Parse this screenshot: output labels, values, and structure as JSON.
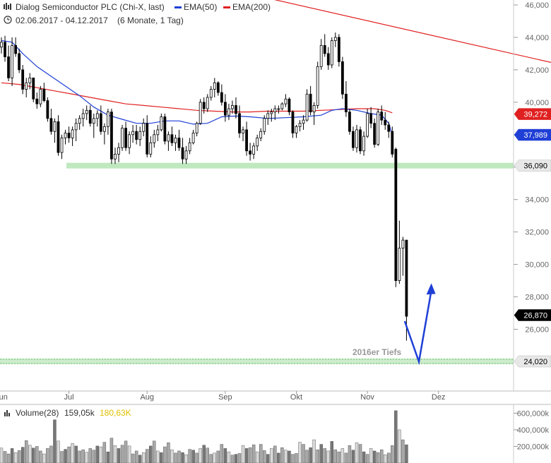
{
  "header": {
    "title": "Dialog Semiconductor PLC (Chi-X, last)",
    "daterange": "02.06.2017 - 04.12.2017",
    "period": "(6 Monate, 1 Tag)",
    "legend": [
      {
        "label": "EMA(50)",
        "color": "#1f3fd6"
      },
      {
        "label": "EMA(200)",
        "color": "#e02020"
      }
    ]
  },
  "volume_header": {
    "label": "Volume(28)",
    "value1": "159,05k",
    "value2": "180,63K",
    "value2_color": "#e0c000"
  },
  "chart_data": [
    {
      "type": "candlestick",
      "title": "Dialog Semiconductor PLC (Chi-X, last)",
      "x_labels": [
        "Jun",
        "Jul",
        "Aug",
        "Sep",
        "Okt",
        "Nov",
        "Dez"
      ],
      "y_ticks": [
        26000,
        28000,
        30000,
        32000,
        34000,
        36000,
        38000,
        40000,
        42000,
        44000,
        46000
      ],
      "y_tick_labels": [
        "26,000",
        "28,000",
        "30,000",
        "32,000",
        "34,000",
        "36,000",
        "38,000",
        "40,000",
        "42,000",
        "44,000",
        "46,000"
      ],
      "ylim": [
        23500,
        46200
      ],
      "price_tags": [
        {
          "label": "39,272",
          "bg": "#e02020",
          "fg": "#ffffff"
        },
        {
          "label": "37,989",
          "bg": "#1f3fd6",
          "fg": "#ffffff"
        },
        {
          "label": "36,090",
          "bg": "#e8e8e8",
          "fg": "#000000"
        },
        {
          "label": "26,870",
          "bg": "#000000",
          "fg": "#ffffff"
        },
        {
          "label": "24,020",
          "bg": "#e8e8e8",
          "fg": "#000000"
        }
      ],
      "support_lines": [
        36090,
        24020
      ],
      "annotation": "2016er Tiefs",
      "ema200": [
        [
          0,
          41.2
        ],
        [
          5,
          41.1
        ],
        [
          10,
          40.9
        ],
        [
          15,
          40.7
        ],
        [
          20,
          40.5
        ],
        [
          25,
          40.3
        ],
        [
          30,
          40.1
        ],
        [
          35,
          39.9
        ],
        [
          40,
          39.8
        ],
        [
          45,
          39.7
        ],
        [
          50,
          39.6
        ],
        [
          55,
          39.5
        ],
        [
          60,
          39.45
        ],
        [
          65,
          39.4
        ],
        [
          70,
          39.4
        ],
        [
          75,
          39.45
        ],
        [
          80,
          39.45
        ],
        [
          85,
          39.45
        ],
        [
          90,
          39.5
        ],
        [
          95,
          39.55
        ],
        [
          100,
          39.6
        ],
        [
          105,
          39.6
        ],
        [
          108,
          39.5
        ],
        [
          110,
          39.35
        ]
      ],
      "ema50": [
        [
          0,
          43.8
        ],
        [
          3,
          43.7
        ],
        [
          6,
          43.0
        ],
        [
          10,
          42.2
        ],
        [
          14,
          41.6
        ],
        [
          18,
          41.0
        ],
        [
          22,
          40.4
        ],
        [
          26,
          39.7
        ],
        [
          30,
          39.2
        ],
        [
          34,
          38.95
        ],
        [
          38,
          38.7
        ],
        [
          42,
          38.7
        ],
        [
          46,
          38.85
        ],
        [
          50,
          38.85
        ],
        [
          54,
          38.65
        ],
        [
          58,
          38.7
        ],
        [
          62,
          39.1
        ],
        [
          66,
          39.15
        ],
        [
          70,
          39.1
        ],
        [
          75,
          39.0
        ],
        [
          80,
          39.05
        ],
        [
          85,
          39.1
        ],
        [
          90,
          39.2
        ],
        [
          93,
          39.5
        ],
        [
          96,
          39.6
        ],
        [
          100,
          39.5
        ],
        [
          104,
          39.3
        ],
        [
          107,
          39.2
        ],
        [
          109,
          38.7
        ],
        [
          110,
          37.99
        ]
      ],
      "ema200_ext": [
        [
          0,
          47.3
        ],
        [
          58,
          42.5
        ]
      ],
      "candles": [
        [
          0,
          43.4,
          44.0,
          43.0,
          43.7
        ],
        [
          1,
          43.7,
          44.1,
          42.5,
          42.8
        ],
        [
          2,
          42.8,
          43.5,
          41.3,
          41.5
        ],
        [
          3,
          41.5,
          44.0,
          41.0,
          43.5
        ],
        [
          4,
          43.5,
          44.0,
          42.8,
          43.0
        ],
        [
          5,
          43.0,
          43.3,
          41.8,
          42.0
        ],
        [
          6,
          42.0,
          42.3,
          40.5,
          40.8
        ],
        [
          7,
          40.8,
          41.5,
          40.3,
          41.2
        ],
        [
          8,
          41.2,
          41.8,
          40.8,
          41.5
        ],
        [
          9,
          41.5,
          41.5,
          40.0,
          40.2
        ],
        [
          10,
          40.2,
          40.6,
          39.6,
          39.9
        ],
        [
          11,
          39.9,
          41.0,
          39.7,
          40.8
        ],
        [
          12,
          40.8,
          41.2,
          40.0,
          40.1
        ],
        [
          13,
          40.1,
          40.3,
          38.8,
          39.0
        ],
        [
          14,
          39.0,
          39.6,
          38.0,
          38.2
        ],
        [
          15,
          38.2,
          39.0,
          37.5,
          38.8
        ],
        [
          16,
          38.8,
          39.2,
          36.7,
          36.9
        ],
        [
          17,
          36.9,
          38.0,
          36.5,
          37.8
        ],
        [
          18,
          37.8,
          38.3,
          37.4,
          38.1
        ],
        [
          19,
          38.1,
          38.5,
          37.5,
          37.8
        ],
        [
          20,
          37.8,
          38.5,
          37.3,
          38.3
        ],
        [
          21,
          38.3,
          39.0,
          37.6,
          38.7
        ],
        [
          22,
          38.7,
          39.2,
          38.3,
          39.0
        ],
        [
          23,
          39.0,
          39.6,
          38.5,
          39.3
        ],
        [
          24,
          39.3,
          39.8,
          38.9,
          39.5
        ],
        [
          25,
          39.5,
          39.8,
          38.5,
          38.7
        ],
        [
          26,
          38.7,
          39.3,
          37.8,
          39.0
        ],
        [
          27,
          39.0,
          39.5,
          38.5,
          39.3
        ],
        [
          28,
          39.3,
          39.8,
          38.0,
          38.2
        ],
        [
          29,
          38.2,
          38.7,
          37.4,
          38.5
        ],
        [
          30,
          38.5,
          39.6,
          38.0,
          39.4
        ],
        [
          31,
          39.4,
          39.6,
          36.2,
          36.5
        ],
        [
          32,
          36.5,
          37.2,
          36.2,
          36.8
        ],
        [
          33,
          36.8,
          37.5,
          36.3,
          37.2
        ],
        [
          34,
          37.2,
          38.6,
          37.0,
          38.4
        ],
        [
          35,
          38.4,
          38.8,
          37.0,
          37.2
        ],
        [
          36,
          37.2,
          38.2,
          36.8,
          38.0
        ],
        [
          37,
          38.0,
          38.6,
          37.5,
          38.2
        ],
        [
          38,
          38.2,
          38.6,
          37.4,
          37.7
        ],
        [
          39,
          37.7,
          38.5,
          37.3,
          38.2
        ],
        [
          40,
          38.2,
          39.0,
          37.9,
          38.7
        ],
        [
          41,
          38.7,
          39.2,
          36.6,
          36.8
        ],
        [
          42,
          36.8,
          37.9,
          36.6,
          37.5
        ],
        [
          43,
          37.5,
          38.3,
          37.2,
          38.0
        ],
        [
          44,
          38.0,
          38.6,
          37.6,
          38.3
        ],
        [
          45,
          38.3,
          39.3,
          38.2,
          39.1
        ],
        [
          46,
          39.1,
          39.3,
          37.4,
          37.6
        ],
        [
          47,
          37.6,
          38.2,
          37.0,
          38.0
        ],
        [
          48,
          38.0,
          38.5,
          37.3,
          37.5
        ],
        [
          49,
          37.5,
          38.0,
          37.0,
          37.8
        ],
        [
          50,
          37.8,
          38.3,
          37.0,
          37.2
        ],
        [
          51,
          37.2,
          37.8,
          36.2,
          36.5
        ],
        [
          52,
          36.5,
          37.3,
          36.2,
          37.0
        ],
        [
          53,
          37.0,
          37.8,
          36.8,
          37.5
        ],
        [
          54,
          37.5,
          38.3,
          37.4,
          38.1
        ],
        [
          55,
          38.1,
          38.8,
          37.9,
          38.7
        ],
        [
          56,
          38.7,
          40.2,
          38.6,
          40.0
        ],
        [
          57,
          40.0,
          40.3,
          39.3,
          39.6
        ],
        [
          58,
          39.6,
          40.5,
          39.4,
          40.3
        ],
        [
          59,
          40.3,
          41.0,
          40.1,
          40.8
        ],
        [
          60,
          40.8,
          41.5,
          40.3,
          41.2
        ],
        [
          61,
          41.2,
          41.3,
          40.4,
          40.6
        ],
        [
          62,
          40.6,
          41.1,
          39.8,
          40.0
        ],
        [
          63,
          40.0,
          40.5,
          38.8,
          39.2
        ],
        [
          64,
          39.2,
          39.9,
          38.9,
          39.6
        ],
        [
          65,
          39.6,
          40.1,
          39.3,
          39.8
        ],
        [
          66,
          39.8,
          40.3,
          39.0,
          39.3
        ],
        [
          67,
          39.3,
          39.8,
          37.8,
          38.1
        ],
        [
          68,
          38.1,
          38.5,
          37.6,
          38.3
        ],
        [
          69,
          38.3,
          38.8,
          36.7,
          37.0
        ],
        [
          70,
          37.0,
          37.5,
          36.4,
          36.8
        ],
        [
          71,
          36.8,
          37.5,
          36.5,
          37.3
        ],
        [
          72,
          37.3,
          38.0,
          37.0,
          37.8
        ],
        [
          73,
          37.8,
          38.4,
          37.6,
          38.2
        ],
        [
          74,
          38.2,
          39.2,
          38.0,
          39.0
        ],
        [
          75,
          39.0,
          39.5,
          38.6,
          39.3
        ],
        [
          76,
          39.3,
          39.6,
          38.8,
          39.4
        ],
        [
          77,
          39.4,
          39.8,
          38.9,
          39.6
        ],
        [
          78,
          39.6,
          39.8,
          39.3,
          39.6
        ],
        [
          79,
          39.6,
          40.0,
          39.5,
          39.9
        ],
        [
          80,
          39.9,
          40.5,
          39.7,
          40.2
        ],
        [
          81,
          40.2,
          40.3,
          39.2,
          39.4
        ],
        [
          82,
          39.4,
          39.5,
          37.8,
          38.1
        ],
        [
          83,
          38.1,
          38.6,
          37.8,
          38.5
        ],
        [
          84,
          38.5,
          38.9,
          38.2,
          38.7
        ],
        [
          85,
          38.7,
          39.2,
          38.3,
          38.9
        ],
        [
          86,
          38.9,
          40.8,
          38.8,
          40.5
        ],
        [
          87,
          40.5,
          41.0,
          39.2,
          39.4
        ],
        [
          88,
          39.4,
          40.0,
          38.6,
          39.8
        ],
        [
          89,
          39.8,
          42.5,
          39.6,
          42.2
        ],
        [
          90,
          42.2,
          43.9,
          42.0,
          43.5
        ],
        [
          91,
          43.5,
          44.2,
          42.8,
          43.0
        ],
        [
          92,
          43.0,
          43.4,
          42.0,
          42.3
        ],
        [
          93,
          42.3,
          44.0,
          42.1,
          43.8
        ],
        [
          94,
          43.8,
          44.3,
          43.4,
          44.0
        ],
        [
          95,
          44.0,
          44.2,
          42.2,
          42.5
        ],
        [
          96,
          42.5,
          42.8,
          40.2,
          40.5
        ],
        [
          97,
          40.5,
          41.3,
          39.1,
          39.4
        ],
        [
          98,
          39.4,
          39.6,
          38.0,
          38.2
        ],
        [
          99,
          38.2,
          38.5,
          37.0,
          37.2
        ],
        [
          100,
          37.2,
          38.6,
          36.9,
          38.3
        ],
        [
          101,
          38.3,
          38.5,
          36.8,
          37.0
        ],
        [
          102,
          37.0,
          38.2,
          36.7,
          37.9
        ],
        [
          103,
          37.9,
          39.6,
          37.8,
          39.3
        ],
        [
          104,
          39.3,
          39.7,
          38.4,
          38.7
        ],
        [
          105,
          38.7,
          39.0,
          37.2,
          37.4
        ],
        [
          106,
          37.4,
          39.6,
          37.3,
          39.4
        ],
        [
          107,
          39.4,
          39.8,
          38.6,
          38.9
        ],
        [
          108,
          38.9,
          39.4,
          38.3,
          38.6
        ],
        [
          109,
          38.6,
          38.8,
          37.8,
          38.2
        ],
        [
          110,
          38.2,
          38.5,
          36.6,
          36.8
        ],
        [
          111,
          37.1,
          37.2,
          28.6,
          29.0
        ],
        [
          112,
          29.0,
          32.7,
          28.8,
          31.0
        ],
        [
          113,
          31.0,
          31.7,
          29.3,
          31.5
        ],
        [
          114,
          31.5,
          31.5,
          25.3,
          26.8
        ]
      ],
      "arrow": {
        "from": [
          113.5,
          26.5
        ],
        "via": [
          117.5,
          24.0
        ],
        "to": [
          121,
          28.4
        ]
      }
    },
    {
      "type": "bar",
      "title": "Volume(28)",
      "y_ticks": [
        200000,
        400000,
        600000
      ],
      "y_tick_labels": [
        "200,000k",
        "400,000k",
        "600,000k"
      ],
      "ylim": [
        0,
        680000
      ],
      "values": [
        180,
        140,
        110,
        175,
        125,
        150,
        190,
        270,
        215,
        180,
        200,
        145,
        110,
        175,
        205,
        520,
        265,
        140,
        165,
        195,
        235,
        205,
        145,
        160,
        130,
        175,
        155,
        205,
        195,
        250,
        135,
        300,
        210,
        175,
        215,
        265,
        205,
        110,
        145,
        95,
        125,
        165,
        205,
        265,
        145,
        125,
        195,
        245,
        160,
        120,
        145,
        125,
        100,
        165,
        155,
        120,
        175,
        215,
        180,
        105,
        120,
        145,
        225,
        175,
        135,
        95,
        105,
        115,
        210,
        175,
        185,
        220,
        135,
        225,
        150,
        105,
        175,
        205,
        120,
        185,
        155,
        145,
        105,
        115,
        250,
        225,
        155,
        185,
        280,
        160,
        225,
        175,
        145,
        260,
        160,
        135,
        175,
        120,
        210,
        155,
        245,
        225,
        135,
        105,
        175,
        145,
        125,
        160,
        100,
        120,
        210,
        630,
        400,
        280,
        220
      ]
    }
  ]
}
